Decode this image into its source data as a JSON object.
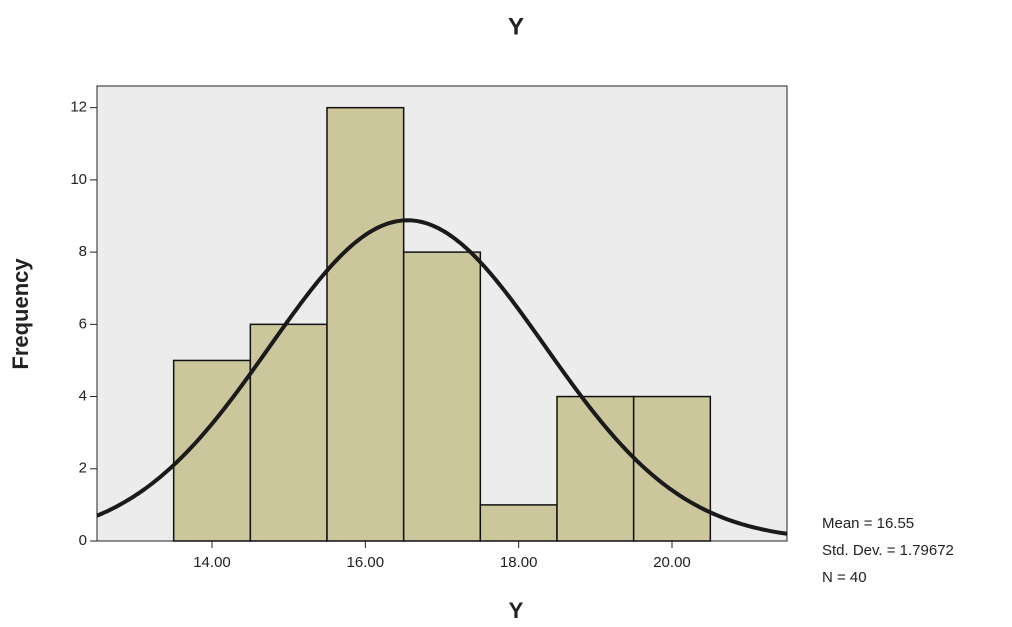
{
  "chart_data": {
    "type": "histogram",
    "title": "Y",
    "x_label": "Y",
    "y_label": "Frequency",
    "bins": [
      13.5,
      14.5,
      15.5,
      16.5,
      17.5,
      18.5,
      19.5,
      20.5
    ],
    "values": [
      5,
      6,
      12,
      8,
      1,
      4,
      4
    ],
    "color": "#cbc69b",
    "curve_color": "#1a1a1a",
    "plot_background": "#ececec",
    "xlim": [
      12.5,
      21.5
    ],
    "xticks": [
      {
        "value": 14,
        "label": "14.00"
      },
      {
        "value": 16,
        "label": "16.00"
      },
      {
        "value": 18,
        "label": "18.00"
      },
      {
        "value": 20,
        "label": "20.00"
      }
    ],
    "ylim": [
      0,
      12.6
    ],
    "yticks": [
      0,
      2,
      4,
      6,
      8,
      10,
      12
    ],
    "stats": [
      {
        "value": 16.55,
        "label": "Mean = 16.55"
      },
      {
        "value": 1.79672,
        "label": "Std. Dev. = 1.79672"
      },
      {
        "value": 40,
        "label": "N = 40"
      }
    ]
  }
}
